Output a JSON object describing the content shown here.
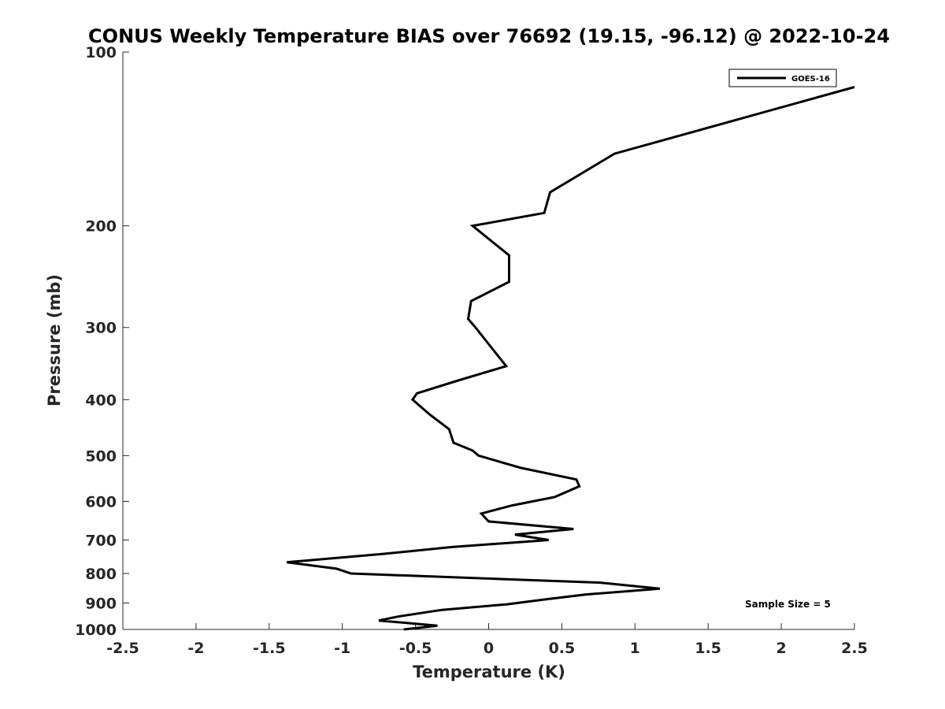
{
  "chart_data": {
    "type": "line",
    "title": "CONUS Weekly Temperature BIAS over 76692 (19.15, -96.12) @ 2022-10-24",
    "xlabel": "Temperature (K)",
    "ylabel": "Pressure (mb)",
    "xlim": [
      -2.5,
      2.5
    ],
    "ylim": [
      1000,
      100
    ],
    "yscale": "log",
    "xticks": [
      "-2.5",
      "-2",
      "-1.5",
      "-1",
      "-0.5",
      "0",
      "0.5",
      "1",
      "1.5",
      "2",
      "2.5"
    ],
    "yticks": [
      "100",
      "200",
      "300",
      "400",
      "500",
      "600",
      "700",
      "800",
      "900",
      "1000"
    ],
    "legend_position": "top-right",
    "annotation": "Sample Size = 5",
    "series": [
      {
        "name": "GOES-16",
        "color": "#000000",
        "points": [
          [
            2.5,
            115
          ],
          [
            0.86,
            150
          ],
          [
            0.42,
            175
          ],
          [
            0.38,
            190
          ],
          [
            -0.11,
            200
          ],
          [
            0.14,
            225
          ],
          [
            0.14,
            250
          ],
          [
            -0.12,
            270
          ],
          [
            -0.14,
            290
          ],
          [
            -0.09,
            300
          ],
          [
            0.12,
            350
          ],
          [
            -0.2,
            370
          ],
          [
            -0.49,
            390
          ],
          [
            -0.52,
            400
          ],
          [
            -0.4,
            425
          ],
          [
            -0.27,
            450
          ],
          [
            -0.24,
            475
          ],
          [
            -0.11,
            490
          ],
          [
            -0.07,
            500
          ],
          [
            0.22,
            525
          ],
          [
            0.6,
            550
          ],
          [
            0.62,
            565
          ],
          [
            0.45,
            590
          ],
          [
            0.16,
            610
          ],
          [
            -0.05,
            630
          ],
          [
            0.0,
            650
          ],
          [
            0.58,
            670
          ],
          [
            0.18,
            685
          ],
          [
            0.41,
            700
          ],
          [
            -0.25,
            720
          ],
          [
            -0.72,
            740
          ],
          [
            -1.38,
            765
          ],
          [
            -1.04,
            785
          ],
          [
            -0.94,
            800
          ],
          [
            0.77,
            830
          ],
          [
            1.17,
            850
          ],
          [
            0.66,
            870
          ],
          [
            0.42,
            885
          ],
          [
            0.12,
            905
          ],
          [
            -0.32,
            925
          ],
          [
            -0.62,
            950
          ],
          [
            -0.75,
            965
          ],
          [
            -0.35,
            985
          ],
          [
            -0.58,
            1000
          ]
        ]
      }
    ]
  }
}
